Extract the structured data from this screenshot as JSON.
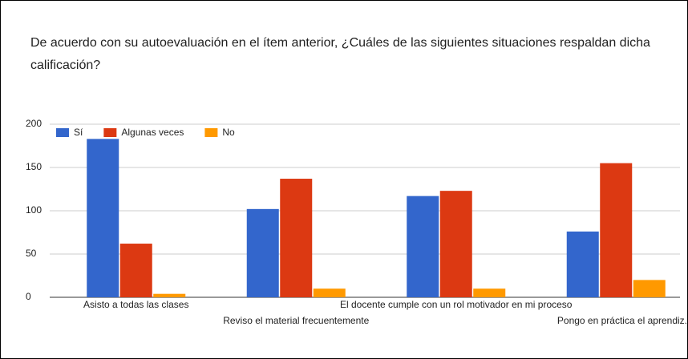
{
  "chart_data": {
    "type": "bar",
    "title": "De acuerdo con su autoevaluación en el ítem anterior, ¿Cuáles de las siguientes situaciones respaldan dicha calificación?",
    "categories": [
      "Asisto a todas las clases",
      "Reviso el material frecuentemente",
      "El docente cumple con un rol motivador en mi proceso",
      "Pongo en práctica el aprendiz."
    ],
    "series": [
      {
        "name": "Sí",
        "color": "#3366cc",
        "values": [
          183,
          102,
          117,
          76
        ]
      },
      {
        "name": "Algunas veces",
        "color": "#dc3912",
        "values": [
          62,
          137,
          123,
          155
        ]
      },
      {
        "name": "No",
        "color": "#ff9900",
        "values": [
          4,
          10,
          10,
          20
        ]
      }
    ],
    "ylim": [
      0,
      200
    ],
    "yticks": [
      0,
      50,
      100,
      150,
      200
    ],
    "grid": true,
    "legend": "top-left"
  }
}
